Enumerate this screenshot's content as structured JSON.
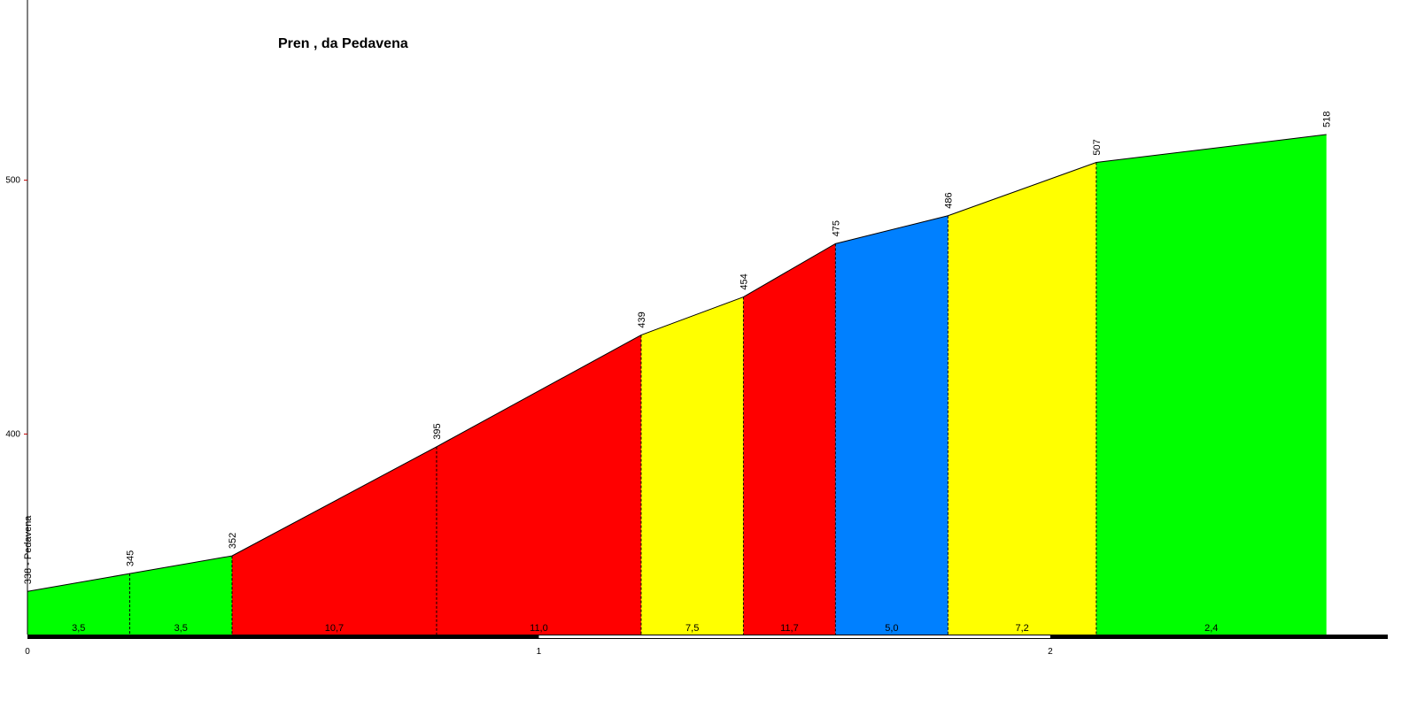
{
  "chart_data": {
    "type": "profile",
    "title": "Pren , da Pedavena",
    "x": [
      0,
      0.2,
      0.4,
      0.8,
      1.2,
      1.4,
      1.58,
      1.8,
      2.09,
      2.54
    ],
    "values": [
      338,
      345,
      352,
      395,
      439,
      454,
      475,
      486,
      507,
      518
    ],
    "value_labels": [
      "338 - Pedavena",
      "345",
      "352",
      "395",
      "439",
      "454",
      "475",
      "486",
      "507",
      "518"
    ],
    "segments": {
      "values": [
        3.5,
        3.5,
        10.7,
        11.0,
        7.5,
        11.7,
        5.0,
        7.2,
        2.4
      ],
      "value_labels": [
        "3,5",
        "3,5",
        "10,7",
        "11,0",
        "7,5",
        "11,7",
        "5,0",
        "7,2",
        "2,4"
      ],
      "colors": [
        "#00ff00",
        "#00ff00",
        "#ff0000",
        "#ff0000",
        "#ffff00",
        "#ff0000",
        "#0080ff",
        "#ffff00",
        "#00ff00"
      ]
    },
    "xlim": [
      0,
      2.66
    ],
    "xticks": [
      0,
      1,
      2
    ],
    "ylim": [
      321,
      571
    ],
    "yticks": [
      400,
      500
    ]
  }
}
